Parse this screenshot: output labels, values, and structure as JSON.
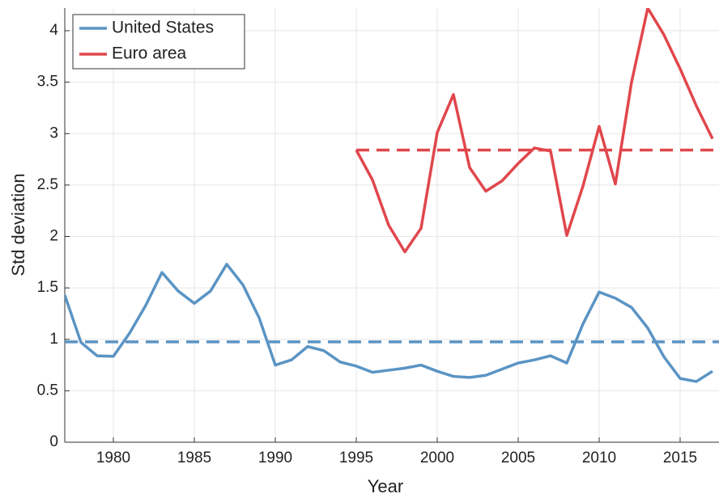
{
  "chart_data": {
    "type": "line",
    "x_label": "Year",
    "y_label": "Std deviation",
    "x": [
      1977,
      1978,
      1979,
      1980,
      1981,
      1982,
      1983,
      1984,
      1985,
      1986,
      1987,
      1988,
      1989,
      1990,
      1991,
      1992,
      1993,
      1994,
      1995,
      1996,
      1997,
      1998,
      1999,
      2000,
      2001,
      2002,
      2003,
      2004,
      2005,
      2006,
      2007,
      2008,
      2009,
      2010,
      2011,
      2012,
      2013,
      2014,
      2015,
      2016,
      2017
    ],
    "series": [
      {
        "name": "United States",
        "color": "#5a94c4",
        "values": [
          1.43,
          0.97,
          0.84,
          0.835,
          1.06,
          1.33,
          1.65,
          1.47,
          1.35,
          1.47,
          1.73,
          1.53,
          1.21,
          0.75,
          0.8,
          0.93,
          0.89,
          0.78,
          0.74,
          0.68,
          0.7,
          0.72,
          0.75,
          0.69,
          0.64,
          0.63,
          0.65,
          0.71,
          0.77,
          0.8,
          0.84,
          0.77,
          1.15,
          1.46,
          1.4,
          1.31,
          1.11,
          0.83,
          0.62,
          0.59,
          0.69
        ]
      },
      {
        "name": "Euro area",
        "color": "#e0474c",
        "values": [
          null,
          null,
          null,
          null,
          null,
          null,
          null,
          null,
          null,
          null,
          null,
          null,
          null,
          null,
          null,
          null,
          null,
          null,
          2.84,
          2.55,
          2.11,
          1.85,
          2.08,
          3.01,
          3.38,
          2.67,
          2.44,
          2.54,
          2.71,
          2.86,
          2.83,
          2.01,
          2.49,
          3.07,
          2.51,
          3.5,
          4.22,
          3.96,
          3.63,
          3.27,
          2.95
        ]
      }
    ],
    "hlines": [
      {
        "y": 0.975,
        "from": 1977,
        "color": "#5a94c4"
      },
      {
        "y": 2.84,
        "from": 1995,
        "color": "#e0474c"
      }
    ],
    "xlim": [
      1977,
      2017.4
    ],
    "ylim": [
      0,
      4.22
    ],
    "xticks": [
      1980,
      1985,
      1990,
      1995,
      2000,
      2005,
      2010,
      2015
    ],
    "yticks": [
      0,
      0.5,
      1,
      1.5,
      2,
      2.5,
      3,
      3.5,
      4
    ],
    "grid": true,
    "legend": "upper-left"
  }
}
